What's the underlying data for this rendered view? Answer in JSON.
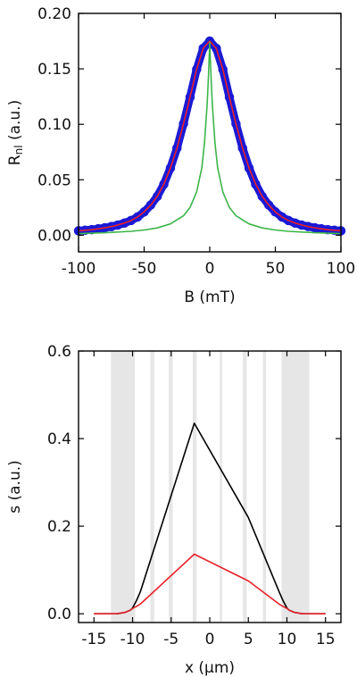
{
  "chart_data": [
    {
      "type": "line",
      "xlabel": "B (mT)",
      "ylabel_main": "R",
      "ylabel_sub": "nl",
      "ylabel_tail": " (a.u.)",
      "xlim": [
        -100,
        100
      ],
      "ylim": [
        -0.015,
        0.2
      ],
      "xticks": [
        -100,
        -50,
        0,
        50,
        100
      ],
      "xtick_labels": [
        "-100",
        "-50",
        "0",
        "50",
        "100"
      ],
      "yticks": [
        0.0,
        0.05,
        0.1,
        0.15,
        0.2
      ],
      "ytick_labels": [
        "0.00",
        "0.05",
        "0.10",
        "0.15",
        "0.20"
      ],
      "grid": false,
      "series": [
        {
          "style": "markers",
          "color": "#1a1ad6",
          "x": [
            -100,
            -95,
            -90,
            -85,
            -80,
            -75,
            -70,
            -65,
            -60,
            -55,
            -50,
            -45,
            -40,
            -35,
            -30,
            -25,
            -20,
            -15,
            -10,
            -5,
            0,
            5,
            10,
            15,
            20,
            25,
            30,
            35,
            40,
            45,
            50,
            55,
            60,
            65,
            70,
            75,
            80,
            85,
            90,
            95,
            100
          ],
          "y": [
            0.004,
            0.0045,
            0.005,
            0.0058,
            0.0067,
            0.0078,
            0.0092,
            0.011,
            0.0133,
            0.0165,
            0.021,
            0.0272,
            0.035,
            0.046,
            0.0605,
            0.0785,
            0.1005,
            0.1245,
            0.1495,
            0.1685,
            0.175,
            0.1685,
            0.1495,
            0.1245,
            0.1005,
            0.0785,
            0.0605,
            0.046,
            0.035,
            0.0272,
            0.021,
            0.0165,
            0.0133,
            0.011,
            0.0092,
            0.0078,
            0.0067,
            0.0058,
            0.005,
            0.0045,
            0.004
          ]
        },
        {
          "style": "line",
          "color": "#e8202a",
          "x": [
            -100,
            -95,
            -90,
            -85,
            -80,
            -75,
            -70,
            -65,
            -60,
            -55,
            -50,
            -45,
            -40,
            -35,
            -30,
            -25,
            -20,
            -15,
            -10,
            -5,
            0,
            5,
            10,
            15,
            20,
            25,
            30,
            35,
            40,
            45,
            50,
            55,
            60,
            65,
            70,
            75,
            80,
            85,
            90,
            95,
            100
          ],
          "y": [
            0.004,
            0.0045,
            0.005,
            0.0058,
            0.0067,
            0.0078,
            0.0092,
            0.011,
            0.0133,
            0.0165,
            0.021,
            0.0272,
            0.035,
            0.046,
            0.0605,
            0.0785,
            0.1005,
            0.1245,
            0.1495,
            0.1685,
            0.175,
            0.1685,
            0.1495,
            0.1245,
            0.1005,
            0.0785,
            0.0605,
            0.046,
            0.035,
            0.0272,
            0.021,
            0.0165,
            0.0133,
            0.011,
            0.0092,
            0.0078,
            0.0067,
            0.0058,
            0.005,
            0.0045,
            0.004
          ]
        },
        {
          "style": "line",
          "color": "#3cb54a",
          "x": [
            -100,
            -80,
            -60,
            -50,
            -40,
            -30,
            -20,
            -15,
            -10,
            -6,
            -4,
            -2,
            -1,
            0,
            1,
            2,
            4,
            6,
            10,
            15,
            20,
            30,
            40,
            50,
            60,
            80,
            100
          ],
          "y": [
            0.0015,
            0.0022,
            0.0035,
            0.0047,
            0.0066,
            0.0102,
            0.0175,
            0.025,
            0.039,
            0.061,
            0.083,
            0.118,
            0.142,
            0.174,
            0.142,
            0.118,
            0.083,
            0.061,
            0.039,
            0.025,
            0.0175,
            0.0102,
            0.0066,
            0.0047,
            0.0035,
            0.0022,
            0.0015
          ]
        }
      ]
    },
    {
      "type": "line",
      "xlabel": "x (µm)",
      "ylabel": "s (a.u.)",
      "xlim": [
        -17,
        17
      ],
      "ylim": [
        -0.02,
        0.6
      ],
      "xticks": [
        -15,
        -10,
        -5,
        0,
        5,
        10,
        15
      ],
      "xtick_labels": [
        "-15",
        "-10",
        "-5",
        "0",
        "5",
        "10",
        "15"
      ],
      "yticks": [
        0.0,
        0.2,
        0.4,
        0.6
      ],
      "ytick_labels": [
        "0.0",
        "0.2",
        "0.4",
        "0.6"
      ],
      "grid": false,
      "shaded_bands_x": [
        [
          -12.8,
          -9.7
        ],
        [
          -7.7,
          -7.2
        ],
        [
          -5.3,
          -4.8
        ],
        [
          -2.2,
          -1.7
        ],
        [
          1.3,
          1.6
        ],
        [
          4.3,
          4.8
        ],
        [
          6.9,
          7.3
        ],
        [
          9.3,
          12.9
        ]
      ],
      "band_color": "#e6e6e6",
      "series": [
        {
          "color": "#000000",
          "x": [
            -15,
            -12,
            -11,
            -10.3,
            -10,
            -9.5,
            -9,
            -2,
            5,
            9,
            9.5,
            10,
            10.3,
            11,
            12,
            15
          ],
          "y": [
            0.0,
            0.0,
            0.003,
            0.008,
            0.013,
            0.03,
            0.05,
            0.435,
            0.22,
            0.05,
            0.03,
            0.013,
            0.008,
            0.003,
            0.0,
            0.0
          ]
        },
        {
          "color": "#e8202a",
          "x": [
            -15,
            -12,
            -11,
            -10.3,
            -10,
            -9.5,
            -9,
            -2,
            5,
            9,
            9.5,
            10,
            10.3,
            11,
            12,
            15
          ],
          "y": [
            0.0,
            0.0,
            0.003,
            0.008,
            0.012,
            0.017,
            0.022,
            0.136,
            0.075,
            0.022,
            0.017,
            0.012,
            0.008,
            0.003,
            0.0,
            0.0
          ]
        }
      ]
    }
  ]
}
